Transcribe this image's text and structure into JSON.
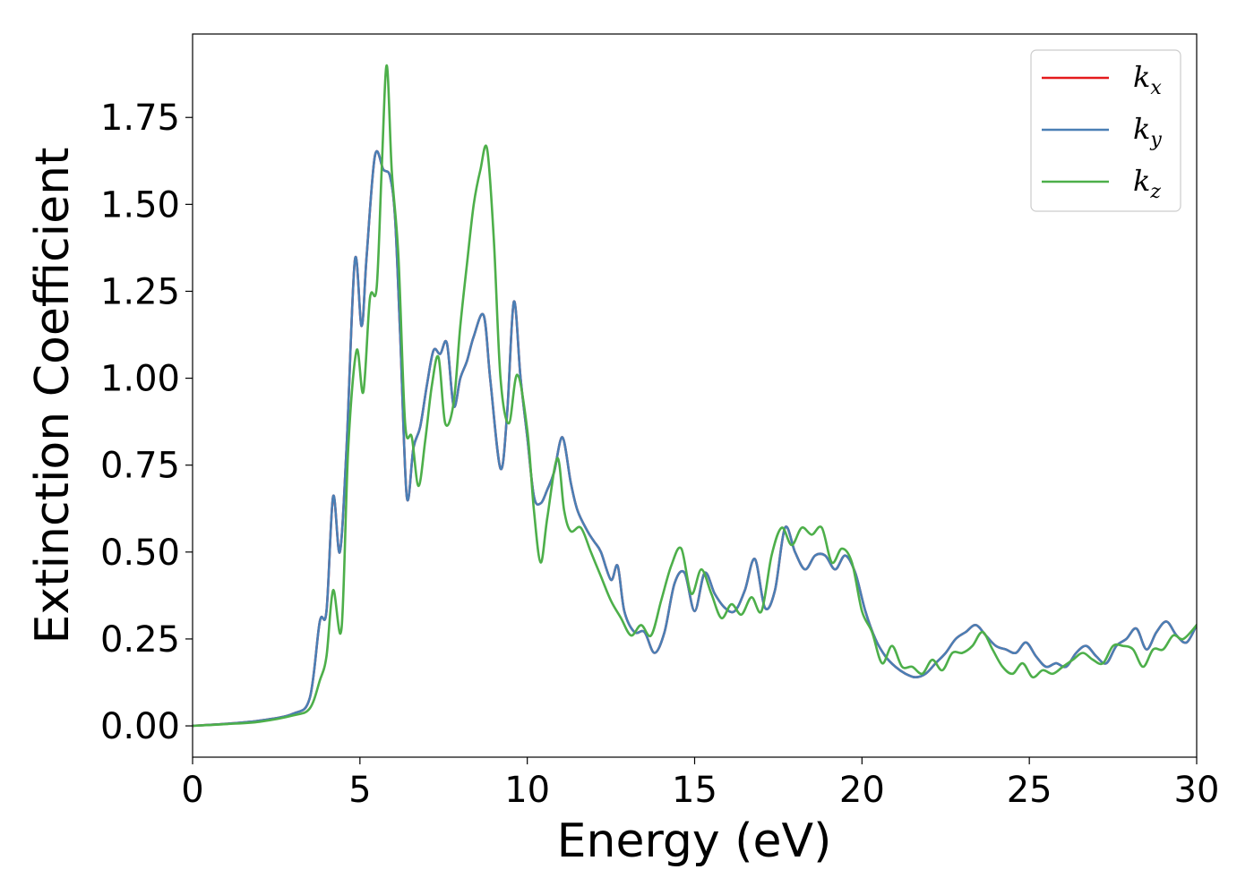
{
  "chart_data": {
    "type": "line",
    "xlabel": "Energy (eV)",
    "ylabel": "Extinction Coefficient",
    "xlim": [
      0,
      30
    ],
    "ylim": [
      -0.09,
      1.99
    ],
    "xticks": [
      0,
      5,
      10,
      15,
      20,
      25,
      30
    ],
    "xtick_labels": [
      "0",
      "5",
      "10",
      "15",
      "20",
      "25",
      "30"
    ],
    "yticks": [
      0.0,
      0.25,
      0.5,
      0.75,
      1.0,
      1.25,
      1.5,
      1.75
    ],
    "ytick_labels": [
      "0.00",
      "0.25",
      "0.50",
      "0.75",
      "1.00",
      "1.25",
      "1.50",
      "1.75"
    ],
    "grid": false,
    "legend_position": "top-right",
    "series": [
      {
        "name": "k",
        "subscript": "x",
        "color": "#e41a1c",
        "x": [
          0,
          1,
          2,
          3,
          3.5,
          3.8,
          4.0,
          4.2,
          4.4,
          4.6,
          4.85,
          5.05,
          5.2,
          5.45,
          5.7,
          5.9,
          6.05,
          6.2,
          6.4,
          6.6,
          6.8,
          7.0,
          7.2,
          7.4,
          7.6,
          7.8,
          8.0,
          8.2,
          8.4,
          8.7,
          8.9,
          9.2,
          9.4,
          9.6,
          9.8,
          10.0,
          10.2,
          10.4,
          10.6,
          10.8,
          11.05,
          11.3,
          11.5,
          11.8,
          12.0,
          12.2,
          12.5,
          12.7,
          12.9,
          13.2,
          13.5,
          13.8,
          14.1,
          14.4,
          14.7,
          15.0,
          15.3,
          15.6,
          15.9,
          16.2,
          16.5,
          16.8,
          17.1,
          17.4,
          17.7,
          18.0,
          18.3,
          18.6,
          18.9,
          19.2,
          19.5,
          19.8,
          20.1,
          20.4,
          20.7,
          21.0,
          21.3,
          21.6,
          21.9,
          22.2,
          22.5,
          22.8,
          23.1,
          23.4,
          23.7,
          24.0,
          24.3,
          24.6,
          24.9,
          25.2,
          25.5,
          25.8,
          26.1,
          26.4,
          26.7,
          27.0,
          27.3,
          27.6,
          27.9,
          28.2,
          28.5,
          28.8,
          29.1,
          29.4,
          29.7,
          30.0
        ],
        "y": [
          0.0,
          0.006,
          0.015,
          0.035,
          0.08,
          0.3,
          0.33,
          0.66,
          0.5,
          0.8,
          1.34,
          1.15,
          1.35,
          1.64,
          1.6,
          1.58,
          1.46,
          1.13,
          0.66,
          0.8,
          0.86,
          0.98,
          1.08,
          1.07,
          1.1,
          0.92,
          1.0,
          1.05,
          1.12,
          1.18,
          0.99,
          0.74,
          0.9,
          1.22,
          1.0,
          0.83,
          0.66,
          0.64,
          0.68,
          0.73,
          0.83,
          0.7,
          0.62,
          0.56,
          0.53,
          0.5,
          0.42,
          0.46,
          0.33,
          0.27,
          0.27,
          0.21,
          0.27,
          0.41,
          0.44,
          0.33,
          0.44,
          0.38,
          0.34,
          0.33,
          0.39,
          0.48,
          0.34,
          0.39,
          0.57,
          0.5,
          0.45,
          0.49,
          0.49,
          0.45,
          0.49,
          0.44,
          0.33,
          0.25,
          0.2,
          0.17,
          0.15,
          0.14,
          0.15,
          0.18,
          0.21,
          0.25,
          0.27,
          0.29,
          0.26,
          0.23,
          0.22,
          0.21,
          0.24,
          0.2,
          0.17,
          0.18,
          0.17,
          0.21,
          0.23,
          0.2,
          0.18,
          0.23,
          0.25,
          0.28,
          0.22,
          0.27,
          0.3,
          0.26,
          0.24,
          0.29
        ]
      },
      {
        "name": "k",
        "subscript": "y",
        "color": "#4a7fb5",
        "x": [
          0,
          1,
          2,
          3,
          3.5,
          3.8,
          4.0,
          4.2,
          4.4,
          4.6,
          4.85,
          5.05,
          5.2,
          5.45,
          5.7,
          5.9,
          6.05,
          6.2,
          6.4,
          6.6,
          6.8,
          7.0,
          7.2,
          7.4,
          7.6,
          7.8,
          8.0,
          8.2,
          8.4,
          8.7,
          8.9,
          9.2,
          9.4,
          9.6,
          9.8,
          10.0,
          10.2,
          10.4,
          10.6,
          10.8,
          11.05,
          11.3,
          11.5,
          11.8,
          12.0,
          12.2,
          12.5,
          12.7,
          12.9,
          13.2,
          13.5,
          13.8,
          14.1,
          14.4,
          14.7,
          15.0,
          15.3,
          15.6,
          15.9,
          16.2,
          16.5,
          16.8,
          17.1,
          17.4,
          17.7,
          18.0,
          18.3,
          18.6,
          18.9,
          19.2,
          19.5,
          19.8,
          20.1,
          20.4,
          20.7,
          21.0,
          21.3,
          21.6,
          21.9,
          22.2,
          22.5,
          22.8,
          23.1,
          23.4,
          23.7,
          24.0,
          24.3,
          24.6,
          24.9,
          25.2,
          25.5,
          25.8,
          26.1,
          26.4,
          26.7,
          27.0,
          27.3,
          27.6,
          27.9,
          28.2,
          28.5,
          28.8,
          29.1,
          29.4,
          29.7,
          30.0
        ],
        "y": [
          0.0,
          0.006,
          0.015,
          0.035,
          0.08,
          0.3,
          0.33,
          0.66,
          0.5,
          0.8,
          1.34,
          1.15,
          1.35,
          1.64,
          1.6,
          1.58,
          1.46,
          1.13,
          0.66,
          0.8,
          0.86,
          0.98,
          1.08,
          1.07,
          1.1,
          0.92,
          1.0,
          1.05,
          1.12,
          1.18,
          0.99,
          0.74,
          0.9,
          1.22,
          1.0,
          0.83,
          0.66,
          0.64,
          0.68,
          0.73,
          0.83,
          0.7,
          0.62,
          0.56,
          0.53,
          0.5,
          0.42,
          0.46,
          0.33,
          0.27,
          0.27,
          0.21,
          0.27,
          0.41,
          0.44,
          0.33,
          0.44,
          0.38,
          0.34,
          0.33,
          0.39,
          0.48,
          0.34,
          0.39,
          0.57,
          0.5,
          0.45,
          0.49,
          0.49,
          0.45,
          0.49,
          0.44,
          0.33,
          0.25,
          0.2,
          0.17,
          0.15,
          0.14,
          0.15,
          0.18,
          0.21,
          0.25,
          0.27,
          0.29,
          0.26,
          0.23,
          0.22,
          0.21,
          0.24,
          0.2,
          0.17,
          0.18,
          0.17,
          0.21,
          0.23,
          0.2,
          0.18,
          0.23,
          0.25,
          0.28,
          0.22,
          0.27,
          0.3,
          0.26,
          0.24,
          0.29
        ]
      },
      {
        "name": "k",
        "subscript": "z",
        "color": "#4daf4a",
        "x": [
          0,
          1,
          2,
          3,
          3.5,
          3.8,
          4.0,
          4.2,
          4.45,
          4.65,
          4.9,
          5.1,
          5.3,
          5.5,
          5.65,
          5.8,
          5.95,
          6.15,
          6.35,
          6.55,
          6.75,
          6.95,
          7.15,
          7.35,
          7.55,
          7.8,
          8.0,
          8.2,
          8.4,
          8.6,
          8.8,
          9.0,
          9.2,
          9.45,
          9.7,
          10.0,
          10.2,
          10.4,
          10.6,
          10.9,
          11.1,
          11.3,
          11.6,
          11.9,
          12.2,
          12.5,
          12.8,
          13.1,
          13.4,
          13.7,
          14.0,
          14.3,
          14.6,
          14.9,
          15.2,
          15.5,
          15.8,
          16.1,
          16.4,
          16.7,
          17.0,
          17.3,
          17.6,
          17.9,
          18.2,
          18.5,
          18.8,
          19.1,
          19.4,
          19.7,
          20.0,
          20.3,
          20.6,
          20.9,
          21.2,
          21.5,
          21.8,
          22.1,
          22.4,
          22.7,
          23.0,
          23.3,
          23.6,
          23.9,
          24.2,
          24.5,
          24.8,
          25.1,
          25.4,
          25.7,
          26.0,
          26.3,
          26.6,
          26.9,
          27.2,
          27.5,
          27.8,
          28.1,
          28.4,
          28.7,
          29.0,
          29.3,
          29.6,
          30.0
        ],
        "y": [
          0.0,
          0.005,
          0.012,
          0.03,
          0.05,
          0.13,
          0.2,
          0.39,
          0.28,
          0.8,
          1.08,
          0.96,
          1.23,
          1.26,
          1.6,
          1.9,
          1.6,
          1.35,
          0.87,
          0.83,
          0.69,
          0.82,
          0.98,
          1.06,
          0.87,
          0.93,
          1.15,
          1.33,
          1.5,
          1.6,
          1.66,
          1.4,
          1.0,
          0.87,
          1.01,
          0.85,
          0.62,
          0.47,
          0.6,
          0.77,
          0.62,
          0.56,
          0.57,
          0.5,
          0.43,
          0.36,
          0.31,
          0.26,
          0.29,
          0.26,
          0.36,
          0.46,
          0.51,
          0.38,
          0.45,
          0.38,
          0.31,
          0.35,
          0.32,
          0.37,
          0.33,
          0.49,
          0.57,
          0.52,
          0.57,
          0.55,
          0.57,
          0.47,
          0.51,
          0.47,
          0.33,
          0.27,
          0.18,
          0.23,
          0.17,
          0.17,
          0.15,
          0.19,
          0.16,
          0.21,
          0.21,
          0.23,
          0.27,
          0.22,
          0.17,
          0.15,
          0.18,
          0.14,
          0.16,
          0.15,
          0.17,
          0.19,
          0.21,
          0.19,
          0.18,
          0.23,
          0.23,
          0.22,
          0.17,
          0.22,
          0.22,
          0.26,
          0.25,
          0.29
        ]
      }
    ]
  }
}
